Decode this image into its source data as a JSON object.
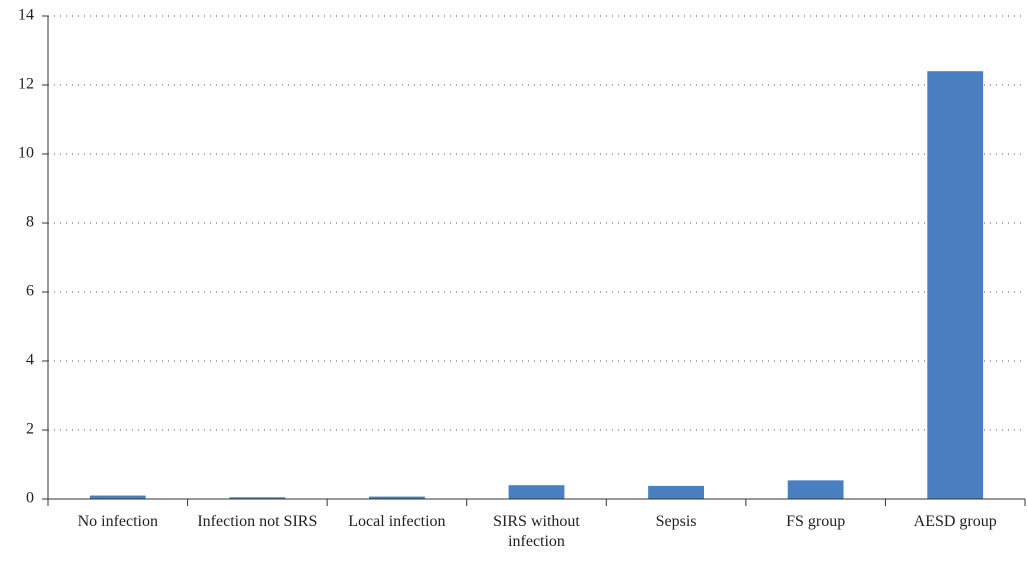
{
  "chart_data": {
    "type": "bar",
    "categories": [
      "No infection",
      "Infection not SIRS",
      "Local infection",
      "SIRS without infection",
      "Sepsis",
      "FS group",
      "AESD group"
    ],
    "values": [
      0.1,
      0.05,
      0.07,
      0.4,
      0.38,
      0.54,
      12.4
    ],
    "color": "#4a7fc1",
    "ylim": [
      0,
      14
    ],
    "yticks": [
      0,
      2,
      4,
      6,
      8,
      10,
      12,
      14
    ],
    "grid": true
  }
}
